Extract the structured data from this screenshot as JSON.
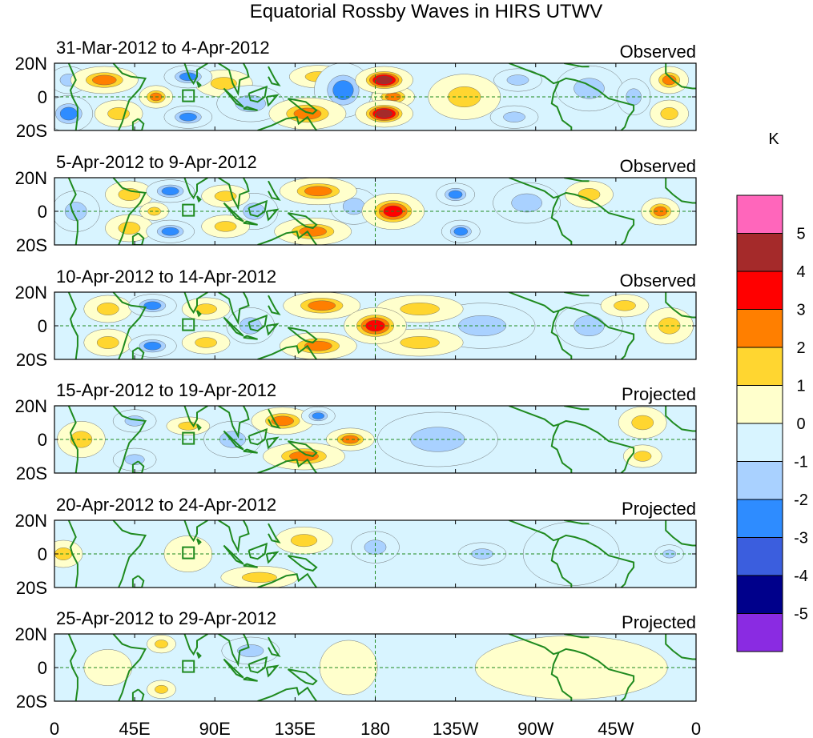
{
  "chart_data": {
    "type": "heatmap",
    "title": "Equatorial Rossby Waves in HIRS UTWV",
    "units": "K",
    "x_ticks": [
      "0",
      "45E",
      "90E",
      "135E",
      "180",
      "135W",
      "90W",
      "45W",
      "0"
    ],
    "x_range_deg": [
      0,
      360
    ],
    "y_ticks": [
      "20N",
      "0",
      "20S"
    ],
    "y_range_deg": [
      -20,
      20
    ],
    "colorbar": {
      "labels": [
        "5",
        "4",
        "3",
        "2",
        "1",
        "0",
        "-1",
        "-2",
        "-3",
        "-4",
        "-5"
      ],
      "colors": [
        "#ff66bb",
        "#a52a2a",
        "#ff0000",
        "#ff7f00",
        "#ffd630",
        "#ffffcc",
        "#d8f4ff",
        "#a9d1ff",
        "#2e8cff",
        "#3b5ede",
        "#00008b",
        "#8a2be2"
      ]
    },
    "panels": [
      {
        "period": "31-Mar-2012 to 4-Apr-2012",
        "kind": "Observed",
        "blobs": [
          {
            "lon": 185,
            "lat": 10,
            "rlon": 12,
            "rlat": 6,
            "value": 4.3
          },
          {
            "lon": 185,
            "lat": -10,
            "rlon": 12,
            "rlat": 6,
            "value": 4.2
          },
          {
            "lon": 190,
            "lat": 0,
            "rlon": 9,
            "rlat": 5,
            "value": 2.5
          },
          {
            "lon": 142,
            "lat": -10,
            "rlon": 16,
            "rlat": 7,
            "value": 2.6
          },
          {
            "lon": 148,
            "lat": 12,
            "rlon": 12,
            "rlat": 5,
            "value": 1.6
          },
          {
            "lon": 28,
            "lat": 10,
            "rlon": 14,
            "rlat": 6,
            "value": 2.2
          },
          {
            "lon": 36,
            "lat": -10,
            "rlon": 10,
            "rlat": 6,
            "value": 2.0
          },
          {
            "lon": 57,
            "lat": 0,
            "rlon": 7,
            "rlat": 5,
            "value": 2.3
          },
          {
            "lon": 95,
            "lat": 8,
            "rlon": 12,
            "rlat": 6,
            "value": 1.5
          },
          {
            "lon": 75,
            "lat": 12,
            "rlon": 10,
            "rlat": 5,
            "value": -2.4
          },
          {
            "lon": 75,
            "lat": -12,
            "rlon": 10,
            "rlat": 5,
            "value": -2.4
          },
          {
            "lon": 110,
            "lat": -4,
            "rlon": 14,
            "rlat": 8,
            "value": -1.6
          },
          {
            "lon": 162,
            "lat": 4,
            "rlon": 12,
            "rlat": 12,
            "value": -2.3
          },
          {
            "lon": 8,
            "lat": -10,
            "rlon": 10,
            "rlat": 8,
            "value": -2.2
          },
          {
            "lon": 8,
            "lat": 10,
            "rlon": 8,
            "rlat": 6,
            "value": -1.8
          },
          {
            "lon": 230,
            "lat": 0,
            "rlon": 15,
            "rlat": 10,
            "value": 1.2
          },
          {
            "lon": 260,
            "lat": 10,
            "rlon": 10,
            "rlat": 5,
            "value": -2.0
          },
          {
            "lon": 258,
            "lat": -12,
            "rlon": 10,
            "rlat": 5,
            "value": -1.8
          },
          {
            "lon": 300,
            "lat": 5,
            "rlon": 14,
            "rlat": 10,
            "value": -1.3
          },
          {
            "lon": 345,
            "lat": 10,
            "rlon": 8,
            "rlat": 6,
            "value": 2.4
          },
          {
            "lon": 345,
            "lat": -10,
            "rlon": 8,
            "rlat": 6,
            "value": 2.0
          },
          {
            "lon": 325,
            "lat": 0,
            "rlon": 7,
            "rlat": 8,
            "value": -1.3
          }
        ]
      },
      {
        "period": "5-Apr-2012 to 9-Apr-2012",
        "kind": "Observed",
        "blobs": [
          {
            "lon": 190,
            "lat": 0,
            "rlon": 13,
            "rlat": 8,
            "value": 3.4
          },
          {
            "lon": 148,
            "lat": 12,
            "rlon": 16,
            "rlat": 6,
            "value": 2.4
          },
          {
            "lon": 145,
            "lat": -12,
            "rlon": 16,
            "rlat": 6,
            "value": 2.4
          },
          {
            "lon": 65,
            "lat": 12,
            "rlon": 10,
            "rlat": 5,
            "value": -2.7
          },
          {
            "lon": 65,
            "lat": -12,
            "rlon": 10,
            "rlat": 5,
            "value": -2.7
          },
          {
            "lon": 42,
            "lat": 10,
            "rlon": 10,
            "rlat": 6,
            "value": 2.0
          },
          {
            "lon": 42,
            "lat": -10,
            "rlon": 10,
            "rlat": 6,
            "value": 2.0
          },
          {
            "lon": 56,
            "lat": 0,
            "rlon": 6,
            "rlat": 4,
            "value": 2.0
          },
          {
            "lon": 96,
            "lat": 9,
            "rlon": 10,
            "rlat": 5,
            "value": 1.5
          },
          {
            "lon": 96,
            "lat": -9,
            "rlon": 10,
            "rlat": 5,
            "value": 1.5
          },
          {
            "lon": 112,
            "lat": 0,
            "rlon": 10,
            "rlat": 8,
            "value": -1.4
          },
          {
            "lon": 168,
            "lat": 3,
            "rlon": 10,
            "rlat": 8,
            "value": -1.4
          },
          {
            "lon": 225,
            "lat": 10,
            "rlon": 8,
            "rlat": 5,
            "value": -2.2
          },
          {
            "lon": 228,
            "lat": -12,
            "rlon": 8,
            "rlat": 5,
            "value": -2.2
          },
          {
            "lon": 265,
            "lat": 5,
            "rlon": 14,
            "rlat": 9,
            "value": -1.2
          },
          {
            "lon": 300,
            "lat": 10,
            "rlon": 10,
            "rlat": 6,
            "value": 1.6
          },
          {
            "lon": 340,
            "lat": 0,
            "rlon": 8,
            "rlat": 6,
            "value": 2.4
          },
          {
            "lon": 12,
            "lat": 0,
            "rlon": 10,
            "rlat": 9,
            "value": -1.4
          }
        ]
      },
      {
        "period": "10-Apr-2012 to 14-Apr-2012",
        "kind": "Observed",
        "blobs": [
          {
            "lon": 180,
            "lat": 0,
            "rlon": 13,
            "rlat": 8,
            "value": 3.6
          },
          {
            "lon": 150,
            "lat": 12,
            "rlon": 16,
            "rlat": 6,
            "value": 2.5
          },
          {
            "lon": 148,
            "lat": -12,
            "rlon": 16,
            "rlat": 6,
            "value": 2.5
          },
          {
            "lon": 55,
            "lat": 12,
            "rlon": 10,
            "rlat": 5,
            "value": -2.6
          },
          {
            "lon": 55,
            "lat": -12,
            "rlon": 10,
            "rlat": 5,
            "value": -2.6
          },
          {
            "lon": 30,
            "lat": 10,
            "rlon": 10,
            "rlat": 6,
            "value": 1.8
          },
          {
            "lon": 30,
            "lat": -10,
            "rlon": 10,
            "rlat": 6,
            "value": 1.6
          },
          {
            "lon": 85,
            "lat": 10,
            "rlon": 10,
            "rlat": 5,
            "value": 1.8
          },
          {
            "lon": 85,
            "lat": -10,
            "rlon": 10,
            "rlat": 5,
            "value": 1.8
          },
          {
            "lon": 110,
            "lat": 0,
            "rlon": 10,
            "rlat": 8,
            "value": -1.4
          },
          {
            "lon": 205,
            "lat": 10,
            "rlon": 18,
            "rlat": 6,
            "value": 1.3
          },
          {
            "lon": 205,
            "lat": -10,
            "rlon": 18,
            "rlat": 6,
            "value": 1.3
          },
          {
            "lon": 240,
            "lat": 0,
            "rlon": 22,
            "rlat": 10,
            "value": -1.2
          },
          {
            "lon": 300,
            "lat": 0,
            "rlon": 14,
            "rlat": 10,
            "value": -1.2
          },
          {
            "lon": 320,
            "lat": 12,
            "rlon": 10,
            "rlat": 5,
            "value": 1.4
          },
          {
            "lon": 345,
            "lat": 0,
            "rlon": 10,
            "rlat": 8,
            "value": 1.2
          }
        ]
      },
      {
        "period": "15-Apr-2012 to 19-Apr-2012",
        "kind": "Projected",
        "blobs": [
          {
            "lon": 140,
            "lat": -10,
            "rlon": 17,
            "rlat": 6,
            "value": 2.6
          },
          {
            "lon": 128,
            "lat": 11,
            "rlon": 13,
            "rlat": 6,
            "value": 2.2
          },
          {
            "lon": 166,
            "lat": 0,
            "rlon": 10,
            "rlat": 5,
            "value": 2.2
          },
          {
            "lon": 148,
            "lat": 14,
            "rlon": 7,
            "rlat": 4,
            "value": -2.2
          },
          {
            "lon": 45,
            "lat": 11,
            "rlon": 9,
            "rlat": 5,
            "value": -1.6
          },
          {
            "lon": 45,
            "lat": -12,
            "rlon": 9,
            "rlat": 5,
            "value": -1.6
          },
          {
            "lon": 15,
            "lat": 0,
            "rlon": 10,
            "rlat": 8,
            "value": 1.4
          },
          {
            "lon": 75,
            "lat": 8,
            "rlon": 9,
            "rlat": 4,
            "value": 1.2
          },
          {
            "lon": 100,
            "lat": 0,
            "rlon": 12,
            "rlat": 8,
            "value": -1.2
          },
          {
            "lon": 215,
            "lat": 0,
            "rlon": 25,
            "rlat": 12,
            "value": -1.1
          },
          {
            "lon": 330,
            "lat": 10,
            "rlon": 10,
            "rlat": 7,
            "value": 1.5
          },
          {
            "lon": 330,
            "lat": -10,
            "rlon": 8,
            "rlat": 5,
            "value": 1.2
          }
        ]
      },
      {
        "period": "20-Apr-2012 to 24-Apr-2012",
        "kind": "Projected",
        "blobs": [
          {
            "lon": 115,
            "lat": -14,
            "rlon": 16,
            "rlat": 5,
            "value": 1.2
          },
          {
            "lon": 5,
            "lat": 0,
            "rlon": 8,
            "rlat": 6,
            "value": 1.2
          },
          {
            "lon": 140,
            "lat": 8,
            "rlon": 12,
            "rlat": 6,
            "value": 1.1
          },
          {
            "lon": 180,
            "lat": 4,
            "rlon": 10,
            "rlat": 7,
            "value": -1.1
          },
          {
            "lon": 240,
            "lat": 0,
            "rlon": 10,
            "rlat": 5,
            "value": -1.1
          },
          {
            "lon": 75,
            "lat": 0,
            "rlon": 10,
            "rlat": 8,
            "value": 0.6
          },
          {
            "lon": 290,
            "lat": 0,
            "rlon": 20,
            "rlat": 14,
            "value": -0.6
          },
          {
            "lon": 345,
            "lat": 0,
            "rlon": 6,
            "rlat": 4,
            "value": -1.1
          }
        ]
      },
      {
        "period": "25-Apr-2012 to 29-Apr-2012",
        "kind": "Projected",
        "blobs": [
          {
            "lon": 110,
            "lat": 10,
            "rlon": 12,
            "rlat": 6,
            "value": -1.4
          },
          {
            "lon": 60,
            "lat": 14,
            "rlon": 6,
            "rlat": 4,
            "value": 1.1
          },
          {
            "lon": 60,
            "lat": -13,
            "rlon": 6,
            "rlat": 4,
            "value": 1.1
          },
          {
            "lon": 165,
            "lat": 0,
            "rlon": 12,
            "rlat": 12,
            "value": 0.6
          },
          {
            "lon": 290,
            "lat": 0,
            "rlon": 40,
            "rlat": 14,
            "value": 0.6
          },
          {
            "lon": 30,
            "lat": 0,
            "rlon": 10,
            "rlat": 8,
            "value": 0.5
          }
        ]
      }
    ]
  }
}
